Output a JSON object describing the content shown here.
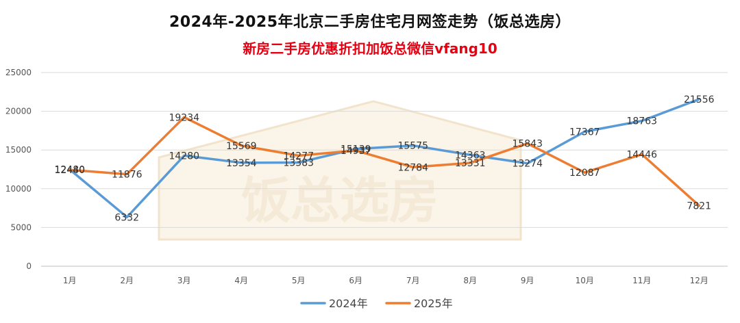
{
  "title": "2024年-2025年北京二手房住宅月网签走势（饭总选房）",
  "subtitle": "新房二手房优惠折扣加饭总微信vfang10",
  "watermark": "饭总选房",
  "chart_data": {
    "type": "line",
    "categories": [
      "1月",
      "2月",
      "3月",
      "4月",
      "5月",
      "6月",
      "7月",
      "8月",
      "9月",
      "10月",
      "11月",
      "12月"
    ],
    "series": [
      {
        "name": "2024年",
        "color": "#5b9bd5",
        "values": [
          12480,
          6332,
          14280,
          13354,
          13383,
          15139,
          15575,
          14363,
          13274,
          17367,
          18763,
          21556
        ]
      },
      {
        "name": "2025年",
        "color": "#ed7d31",
        "values": [
          12440,
          11876,
          19234,
          15569,
          14277,
          14937,
          12784,
          13331,
          15843,
          12087,
          14446,
          7821
        ]
      }
    ],
    "yticks": [
      0,
      5000,
      10000,
      15000,
      20000,
      25000
    ],
    "ylim": [
      0,
      25000
    ],
    "grid": true,
    "legend_position": "bottom-center"
  }
}
